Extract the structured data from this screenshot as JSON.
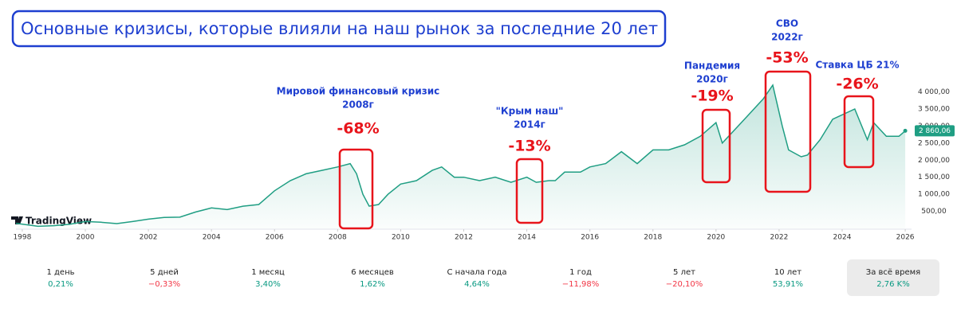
{
  "chart_data": {
    "type": "line",
    "title": "Основные кризисы, которые влияли на наш рынок за последние 20 лет",
    "watermark": "TradingView",
    "line_color": "#1f9e83",
    "grid": false,
    "x": [
      1997.8,
      1998.5,
      1999.0,
      1999.5,
      2000.0,
      2000.5,
      2001.0,
      2001.5,
      2002.0,
      2002.5,
      2003.0,
      2003.5,
      2004.0,
      2004.5,
      2005.0,
      2005.5,
      2006.0,
      2006.5,
      2007.0,
      2007.5,
      2008.0,
      2008.4,
      2008.6,
      2008.8,
      2009.0,
      2009.3,
      2009.6,
      2010.0,
      2010.5,
      2011.0,
      2011.3,
      2011.7,
      2012.0,
      2012.5,
      2013.0,
      2013.5,
      2014.0,
      2014.3,
      2014.7,
      2014.9,
      2015.2,
      2015.7,
      2016.0,
      2016.5,
      2017.0,
      2017.5,
      2018.0,
      2018.5,
      2019.0,
      2019.5,
      2020.0,
      2020.2,
      2020.5,
      2021.0,
      2021.5,
      2021.8,
      2022.1,
      2022.3,
      2022.7,
      2022.9,
      2023.3,
      2023.7,
      2024.4,
      2024.8,
      2025.0,
      2025.4,
      2025.8,
      2026.0
    ],
    "values": [
      150,
      60,
      80,
      120,
      200,
      180,
      140,
      200,
      270,
      320,
      330,
      480,
      600,
      550,
      650,
      700,
      1100,
      1400,
      1600,
      1700,
      1800,
      1900,
      1600,
      1000,
      650,
      700,
      1000,
      1300,
      1400,
      1700,
      1800,
      1500,
      1500,
      1400,
      1500,
      1350,
      1500,
      1350,
      1400,
      1400,
      1650,
      1650,
      1800,
      1900,
      2250,
      1900,
      2300,
      2300,
      2450,
      2700,
      3100,
      2500,
      2800,
      3300,
      3800,
      4200,
      3000,
      2300,
      2100,
      2150,
      2600,
      3200,
      3500,
      2600,
      3100,
      2700,
      2700,
      2860
    ],
    "current_value_label": "2 860,06",
    "xlim": [
      1997.8,
      2026.2
    ],
    "xticks": [
      1998,
      2000,
      2002,
      2004,
      2006,
      2008,
      2010,
      2012,
      2014,
      2016,
      2018,
      2020,
      2022,
      2024,
      2026
    ],
    "ylim": [
      0,
      4400
    ],
    "yticks": [
      {
        "value": 500,
        "label": "500,00"
      },
      {
        "value": 1000,
        "label": "1 000,00"
      },
      {
        "value": 1500,
        "label": "1 500,00"
      },
      {
        "value": 2000,
        "label": "2 000,00"
      },
      {
        "value": 2500,
        "label": "2 500,00"
      },
      {
        "value": 3000,
        "label": "3 000,00"
      },
      {
        "value": 3500,
        "label": "3 500,00"
      },
      {
        "value": 4000,
        "label": "4 000,00"
      }
    ],
    "annotations": [
      {
        "label": [
          "Мировой финансовый кризис",
          "2008г"
        ],
        "change": "-68%"
      },
      {
        "label": [
          "\"Крым наш\"",
          "2014г"
        ],
        "change": "-13%"
      },
      {
        "label": [
          "Пандемия",
          "2020г"
        ],
        "change": "-19%"
      },
      {
        "label": [
          "СВО",
          "2022г"
        ],
        "change": "-53%"
      },
      {
        "label": [
          "Ставка ЦБ 21%"
        ],
        "change": "-26%"
      }
    ]
  },
  "performance": [
    {
      "period": "1 день",
      "value": "0,21%"
    },
    {
      "period": "5 дней",
      "value": "−0,33%"
    },
    {
      "period": "1 месяц",
      "value": "3,40%"
    },
    {
      "period": "6 месяцев",
      "value": "1,62%"
    },
    {
      "period": "С начала года",
      "value": "4,64%"
    },
    {
      "period": "1 год",
      "value": "−11,98%"
    },
    {
      "period": "5 лет",
      "value": "−20,10%"
    },
    {
      "period": "10 лет",
      "value": "53,91%"
    },
    {
      "period": "За всё время",
      "value": "2,76 K%"
    }
  ]
}
